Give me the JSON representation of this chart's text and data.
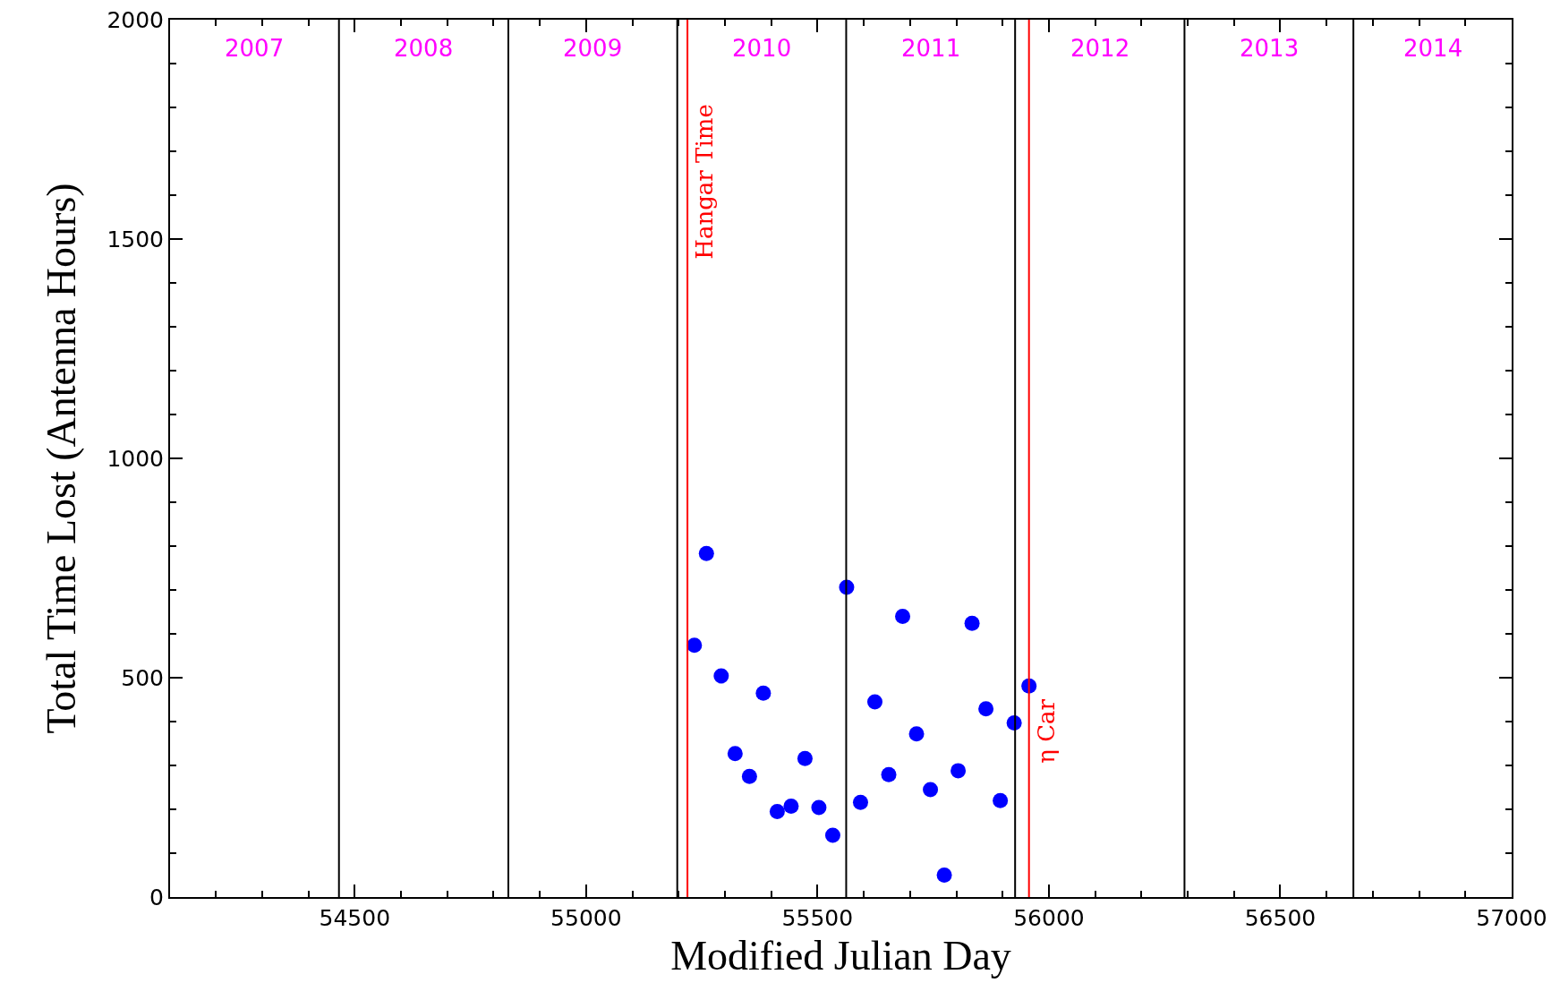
{
  "chart_data": {
    "type": "scatter",
    "xlabel": "Modified Julian Day",
    "ylabel": "Total Time Lost (Antenna Hours)",
    "x": [
      55234,
      55260,
      55292,
      55322,
      55353,
      55383,
      55413,
      55443,
      55473,
      55503,
      55533,
      55563,
      55593,
      55624,
      55654,
      55684,
      55714,
      55744,
      55774,
      55804,
      55834,
      55864,
      55895,
      55925,
      55957
    ],
    "series": [
      {
        "color": "#0000ff",
        "values": [
          574,
          783,
          504,
          327,
          275,
          465,
          195,
          207,
          316,
          204,
          141,
          706,
          216,
          445,
          279,
          640,
          372,
          245,
          50,
          288,
          624,
          429,
          220,
          397,
          481
        ]
      }
    ],
    "xlim": [
      54101,
      57000
    ],
    "xticks": [
      54500,
      55000,
      55500,
      56000,
      56500,
      57000
    ],
    "ylim": [
      0,
      2000
    ],
    "yticks": [
      0,
      500,
      1000,
      1500,
      2000
    ],
    "grid": false,
    "marker": "circle",
    "ref_lines": [
      {
        "axis": "x",
        "value": 54466,
        "color": "#000000"
      },
      {
        "axis": "x",
        "value": 54832,
        "color": "#000000"
      },
      {
        "axis": "x",
        "value": 55197,
        "color": "#000000"
      },
      {
        "axis": "x",
        "value": 55562,
        "color": "#000000"
      },
      {
        "axis": "x",
        "value": 55927,
        "color": "#000000"
      },
      {
        "axis": "x",
        "value": 56293,
        "color": "#000000"
      },
      {
        "axis": "x",
        "value": 56658,
        "color": "#000000"
      },
      {
        "axis": "x",
        "value": 55219,
        "color": "#ff0000",
        "label": "Hangar Time"
      },
      {
        "axis": "x",
        "value": 55957,
        "color": "#ff0000",
        "label": "η Car"
      }
    ],
    "annotations": [
      "2007",
      "2008",
      "2009",
      "2010",
      "2011",
      "2012",
      "2013",
      "2014"
    ]
  }
}
